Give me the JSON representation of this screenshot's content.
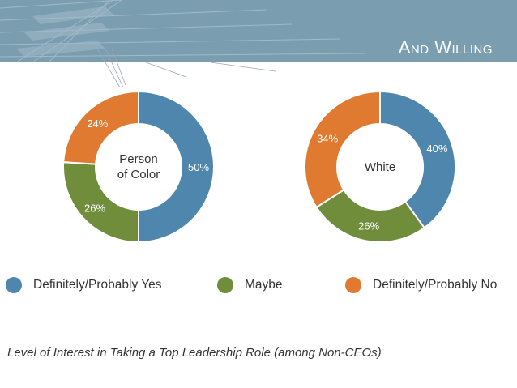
{
  "slide": {
    "title": "And Willing"
  },
  "colors": {
    "yes": "#4f86ad",
    "maybe": "#6f8d3b",
    "no": "#e07a30",
    "banner": "#7a9db0"
  },
  "chart_data": [
    {
      "type": "pie",
      "subtype": "donut",
      "center_label": [
        "Person",
        "of Color"
      ],
      "series": [
        {
          "name": "Definitely/Probably Yes",
          "value": 50,
          "label": "50%"
        },
        {
          "name": "Maybe",
          "value": 26,
          "label": "26%"
        },
        {
          "name": "Definitely/Probably No",
          "value": 24,
          "label": "24%"
        }
      ]
    },
    {
      "type": "pie",
      "subtype": "donut",
      "center_label": [
        "White"
      ],
      "series": [
        {
          "name": "Definitely/Probably Yes",
          "value": 40,
          "label": "40%"
        },
        {
          "name": "Maybe",
          "value": 26,
          "label": "26%"
        },
        {
          "name": "Definitely/Probably No",
          "value": 34,
          "label": "34%"
        }
      ]
    }
  ],
  "legend": [
    {
      "label": "Definitely/Probably Yes",
      "color_key": "yes"
    },
    {
      "label": "Maybe",
      "color_key": "maybe"
    },
    {
      "label": "Definitely/Probably No",
      "color_key": "no"
    }
  ],
  "caption": "Level of Interest in Taking a Top Leadership Role (among Non-CEOs)"
}
